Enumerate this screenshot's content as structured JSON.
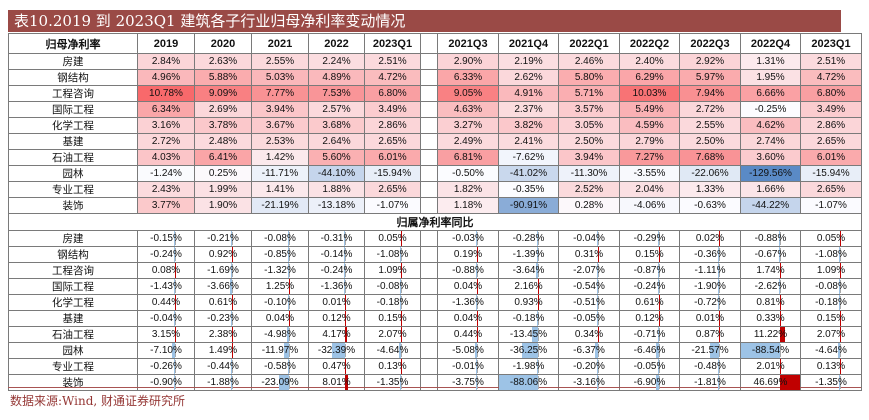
{
  "title": "表10.2019 到 2023Q1 建筑各子行业归母净利率变动情况",
  "footer": {
    "source_text": "数据来源:Wind, 财通证券研究所"
  },
  "colors": {
    "title_bg": "#9a4a46",
    "title_text": "#ffffff",
    "footer_text": "#953735",
    "separator": "#a85452",
    "scale_red": "#F8696B",
    "scale_white": "#FCFCFF",
    "scale_blue": "#5A8AC6",
    "bar_positive": "#C00000",
    "bar_negative": "#9DC3E6",
    "axis_line": "#ababab"
  },
  "table": {
    "corner_header": "归母净利率",
    "annual_columns": [
      "2019",
      "2020",
      "2021",
      "2022",
      "2023Q1"
    ],
    "quarterly_columns": [
      "2021Q3",
      "2021Q4",
      "2022Q1",
      "2022Q2",
      "2022Q3",
      "2022Q4",
      "2023Q1"
    ],
    "color_scale_domain": {
      "min": -129.56,
      "max": 10.78
    },
    "bar_scale_domain": {
      "min": -88.54,
      "max": 46.69
    },
    "section1": {
      "rows": [
        {
          "label": "房建",
          "annual": [
            2.84,
            2.63,
            2.55,
            2.24,
            2.51
          ],
          "quarterly": [
            2.9,
            2.19,
            2.46,
            2.4,
            2.92,
            1.31,
            2.51
          ]
        },
        {
          "label": "钢结构",
          "annual": [
            4.96,
            5.88,
            5.03,
            4.89,
            4.72
          ],
          "quarterly": [
            6.33,
            2.62,
            5.8,
            6.29,
            5.97,
            1.95,
            4.72
          ]
        },
        {
          "label": "工程咨询",
          "annual": [
            10.78,
            9.09,
            7.77,
            7.53,
            6.8
          ],
          "quarterly": [
            9.05,
            4.91,
            5.71,
            10.03,
            7.94,
            6.66,
            6.8
          ]
        },
        {
          "label": "国际工程",
          "annual": [
            6.34,
            2.69,
            3.94,
            2.57,
            3.49
          ],
          "quarterly": [
            4.63,
            2.37,
            3.57,
            5.49,
            2.72,
            -0.25,
            3.49
          ]
        },
        {
          "label": "化学工程",
          "annual": [
            3.16,
            3.78,
            3.67,
            3.68,
            2.86
          ],
          "quarterly": [
            3.27,
            3.82,
            3.05,
            4.59,
            2.55,
            4.62,
            2.86
          ]
        },
        {
          "label": "基建",
          "annual": [
            2.72,
            2.48,
            2.53,
            2.64,
            2.65
          ],
          "quarterly": [
            2.49,
            2.41,
            2.5,
            2.79,
            2.5,
            2.74,
            2.65
          ]
        },
        {
          "label": "石油工程",
          "annual": [
            4.03,
            6.41,
            1.42,
            5.6,
            6.01
          ],
          "quarterly": [
            6.81,
            -7.62,
            3.94,
            7.27,
            7.68,
            3.6,
            6.01
          ]
        },
        {
          "label": "园林",
          "annual": [
            -1.24,
            0.25,
            -11.71,
            -44.1,
            -15.94
          ],
          "quarterly": [
            -0.5,
            -41.02,
            -11.3,
            -3.55,
            -22.06,
            -129.56,
            -15.94
          ]
        },
        {
          "label": "专业工程",
          "annual": [
            2.43,
            1.99,
            1.41,
            1.88,
            2.65
          ],
          "quarterly": [
            1.82,
            -0.35,
            2.52,
            2.04,
            1.33,
            1.66,
            2.65
          ]
        },
        {
          "label": "装饰",
          "annual": [
            3.77,
            1.9,
            -21.19,
            -13.18,
            -1.07
          ],
          "quarterly": [
            1.18,
            -90.91,
            0.28,
            -4.06,
            -0.63,
            -44.22,
            -1.07
          ]
        }
      ]
    },
    "section2_header": "归属净利率同比",
    "section2": {
      "rows": [
        {
          "label": "房建",
          "annual": [
            -0.15,
            -0.21,
            -0.08,
            -0.31,
            0.05
          ],
          "quarterly": [
            -0.03,
            -0.28,
            -0.04,
            -0.29,
            0.02,
            -0.88,
            0.05
          ]
        },
        {
          "label": "钢结构",
          "annual": [
            -0.24,
            0.92,
            -0.85,
            -0.14,
            -1.08
          ],
          "quarterly": [
            0.19,
            -1.39,
            0.31,
            0.15,
            -0.36,
            -0.67,
            -1.08
          ]
        },
        {
          "label": "工程咨询",
          "annual": [
            0.08,
            -1.69,
            -1.32,
            -0.24,
            1.09
          ],
          "quarterly": [
            -0.88,
            -3.64,
            -2.07,
            -0.87,
            -1.11,
            1.74,
            1.09
          ]
        },
        {
          "label": "国际工程",
          "annual": [
            -1.43,
            -3.66,
            1.25,
            -1.36,
            -0.08
          ],
          "quarterly": [
            0.04,
            2.16,
            -0.54,
            -0.24,
            -1.9,
            -2.62,
            -0.08
          ]
        },
        {
          "label": "化学工程",
          "annual": [
            0.44,
            0.61,
            -0.1,
            0.01,
            -0.18
          ],
          "quarterly": [
            -1.36,
            0.93,
            -0.51,
            0.61,
            -0.72,
            0.81,
            -0.18
          ]
        },
        {
          "label": "基建",
          "annual": [
            -0.04,
            -0.23,
            0.04,
            0.12,
            0.15
          ],
          "quarterly": [
            0.04,
            -0.18,
            -0.05,
            0.12,
            0.01,
            0.33,
            0.15
          ]
        },
        {
          "label": "石油工程",
          "annual": [
            3.15,
            2.38,
            -4.98,
            4.17,
            2.07
          ],
          "quarterly": [
            0.44,
            -13.45,
            0.34,
            -0.71,
            0.87,
            11.22,
            2.07
          ]
        },
        {
          "label": "园林",
          "annual": [
            -7.1,
            1.49,
            -11.97,
            -32.39,
            -4.64
          ],
          "quarterly": [
            -5.08,
            -36.25,
            -6.37,
            -6.46,
            -21.57,
            -88.54,
            -4.64
          ]
        },
        {
          "label": "专业工程",
          "annual": [
            -0.26,
            -0.44,
            -0.58,
            0.47,
            0.13
          ],
          "quarterly": [
            -0.01,
            -1.98,
            -0.2,
            -0.05,
            -0.48,
            2.01,
            0.13
          ]
        },
        {
          "label": "装饰",
          "annual": [
            -0.9,
            -1.88,
            -23.09,
            8.01,
            -1.35
          ],
          "quarterly": [
            -3.75,
            -88.06,
            -3.16,
            -6.9,
            -1.81,
            46.69,
            -1.35
          ]
        }
      ]
    }
  }
}
